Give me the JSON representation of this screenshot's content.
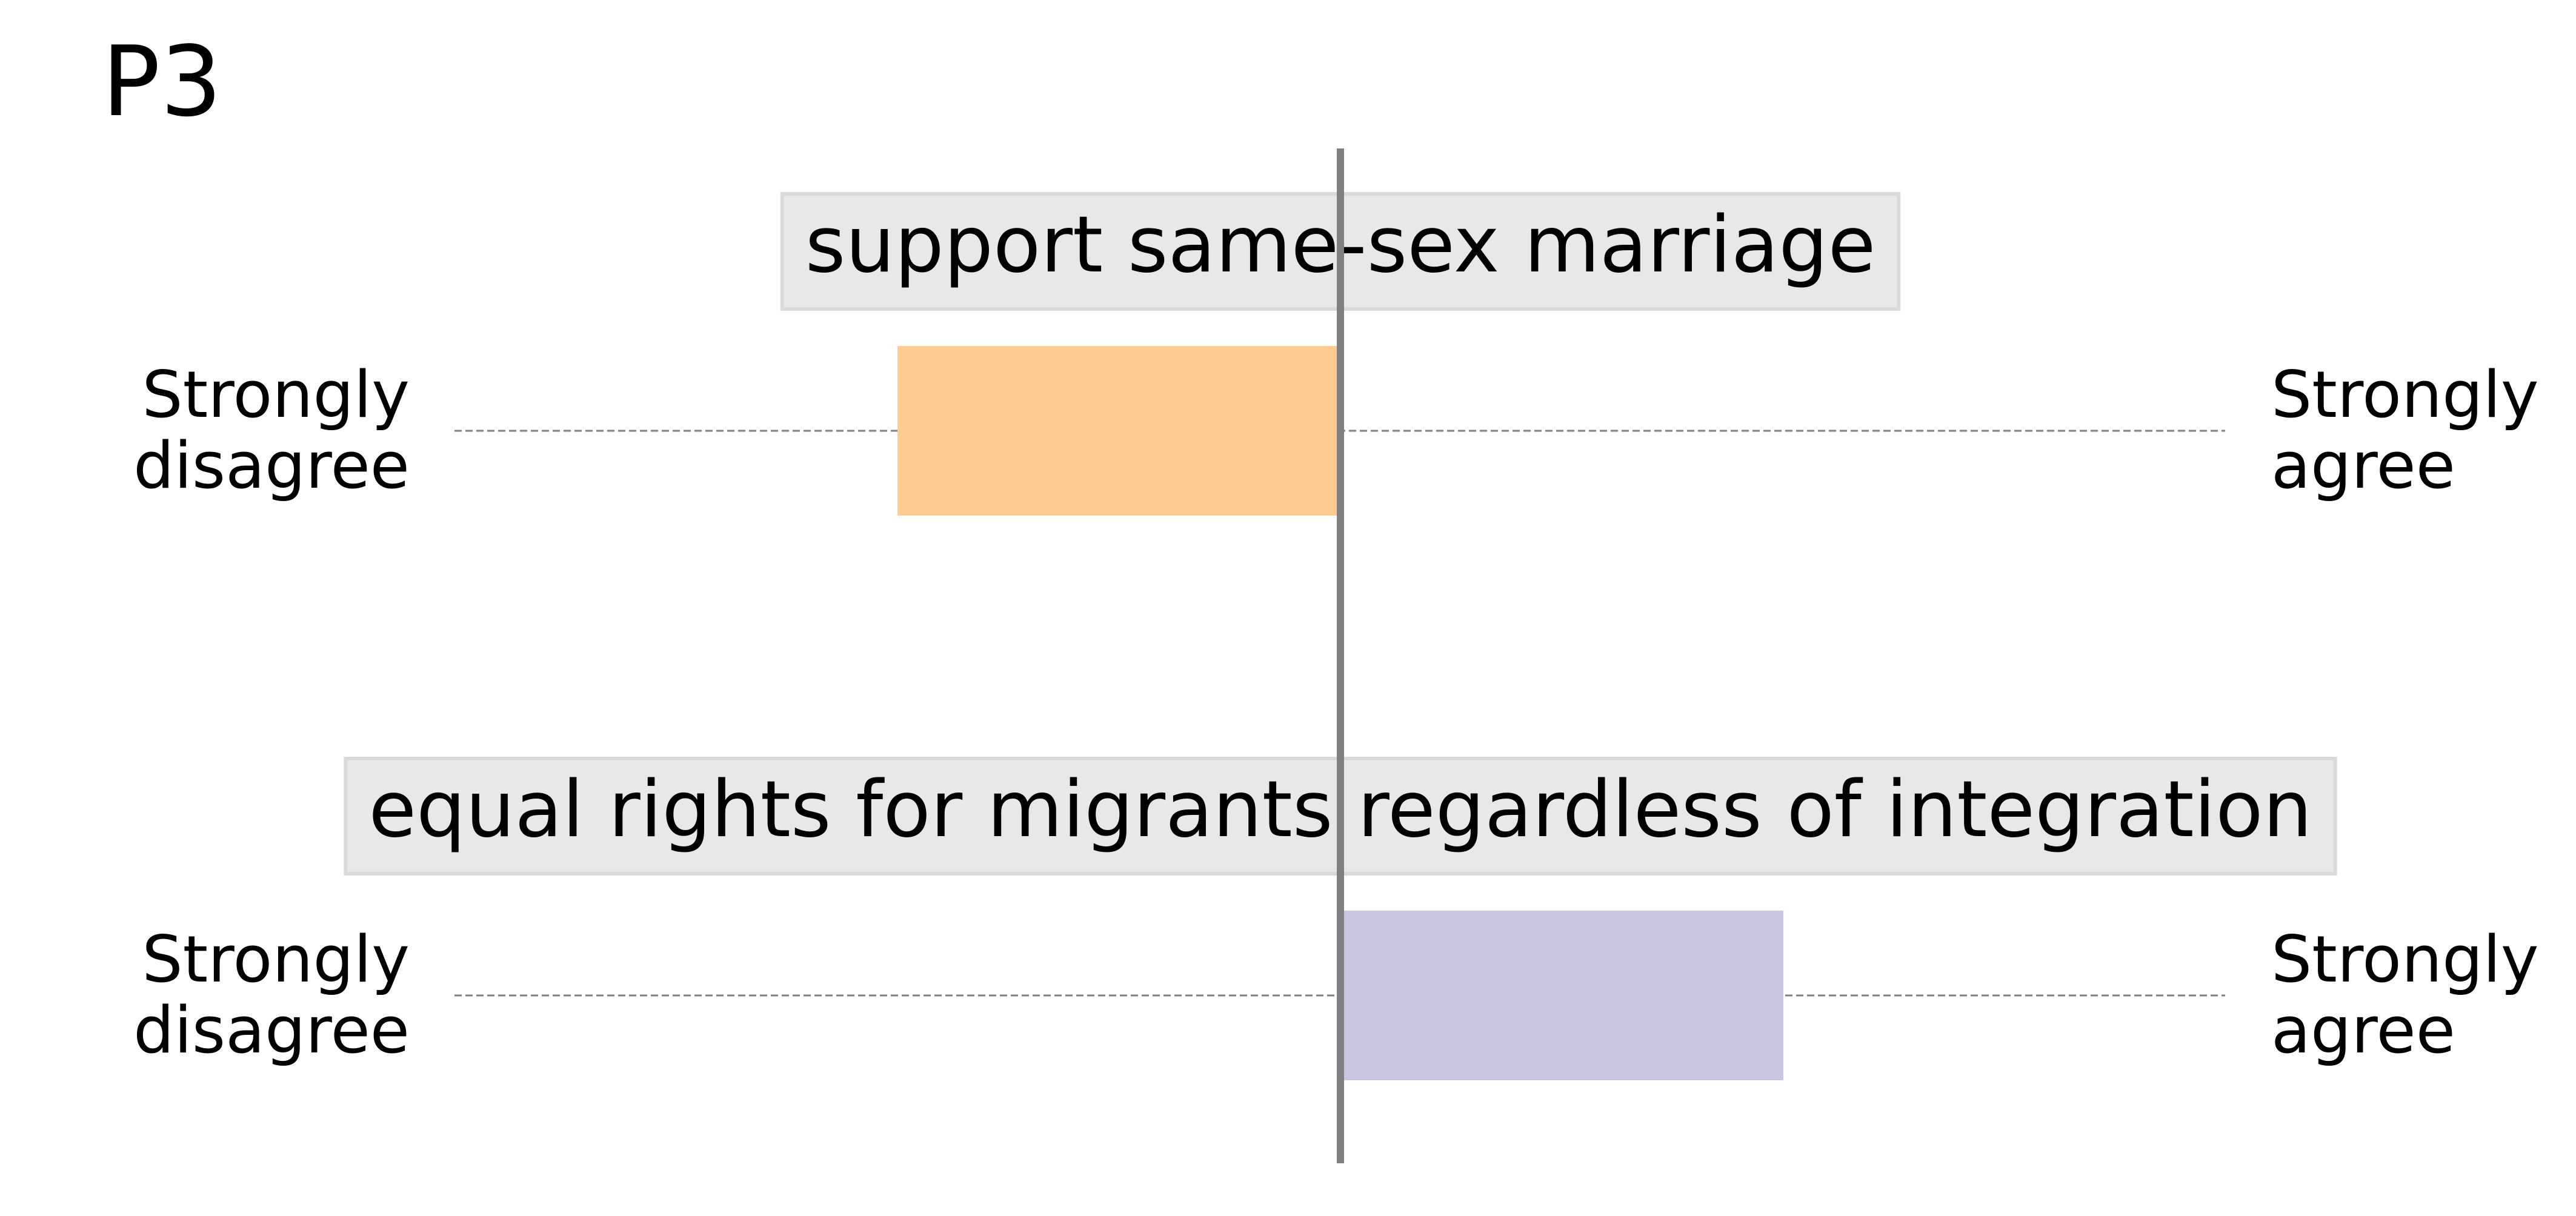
{
  "chart_data": {
    "type": "bar",
    "title": "P3",
    "xlim": [
      -1,
      1
    ],
    "scale_left_label": "Strongly\ndisagree",
    "scale_right_label": "Strongly\nagree",
    "items": [
      {
        "statement": "support same-sex marriage",
        "value": -0.5,
        "color": "#fdcc8f"
      },
      {
        "statement": "equal rights for migrants regardless of integration",
        "value": 0.5,
        "color": "#c9c5e1"
      }
    ],
    "colors": {
      "axis": "#808080",
      "guide": "#808080",
      "label_box": "#e5e5e5",
      "label_border": "#d9d9d9",
      "text": "#000000"
    }
  }
}
